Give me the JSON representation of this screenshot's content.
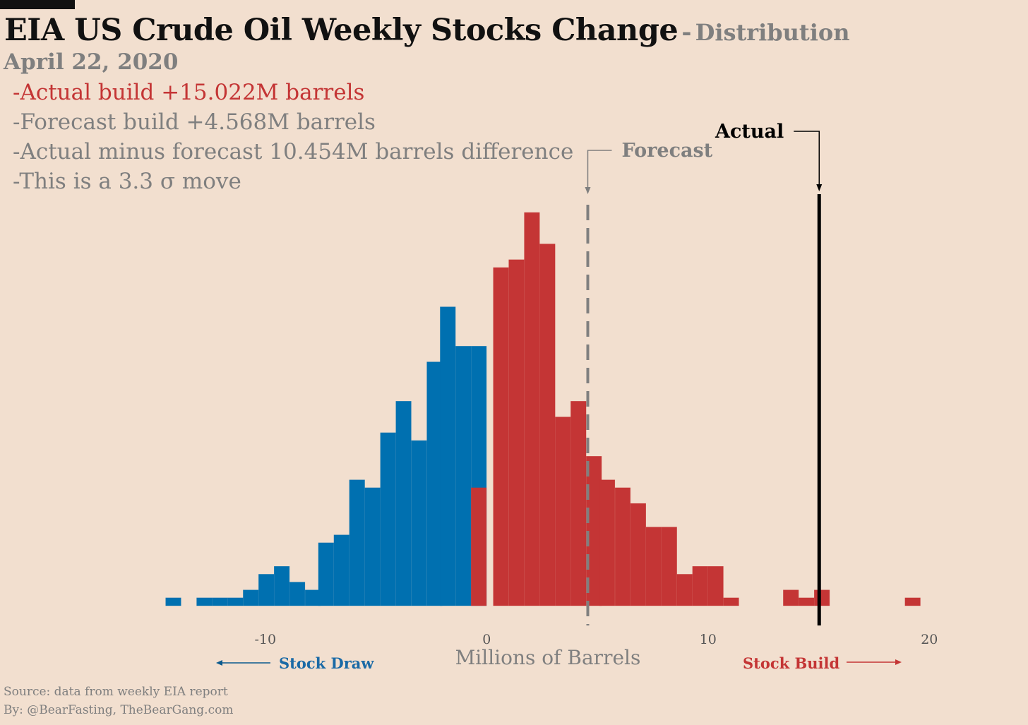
{
  "header": {
    "title": "EIA US Crude Oil Weekly Stocks Change",
    "title_dash": "-",
    "subtitle": "Distribution",
    "date": "April 22, 2020"
  },
  "notes": [
    "-Actual build +15.022M barrels",
    "-Forecast build +4.568M barrels",
    "-Actual minus forecast  10.454M barrels difference",
    "-This is a 3.3 σ move"
  ],
  "footer": {
    "source": "Source: data from  weekly EIA report",
    "by": "By: @BearFasting, TheBearGang.com"
  },
  "colors": {
    "background": "#f2dfcf",
    "draw": "#0070b0",
    "build": "#c43535",
    "forecast_line": "#7f7f7f",
    "actual_line": "#000000"
  },
  "chart_data": {
    "type": "bar",
    "subtype": "histogram",
    "xlabel": "Millions of Barrels",
    "xlim": [
      -15,
      20.5
    ],
    "xticks": [
      -10,
      0,
      10,
      20
    ],
    "bin_width": 0.69,
    "grid": false,
    "series": [
      {
        "name": "Stock Draw",
        "color": "#0070b0",
        "bins": [
          {
            "x0": -14.5,
            "count": 1
          },
          {
            "x0": -13.1,
            "count": 1
          },
          {
            "x0": -12.4,
            "count": 1
          },
          {
            "x0": -11.7,
            "count": 1
          },
          {
            "x0": -11.0,
            "count": 2
          },
          {
            "x0": -10.3,
            "count": 4
          },
          {
            "x0": -9.6,
            "count": 5
          },
          {
            "x0": -8.9,
            "count": 3
          },
          {
            "x0": -8.2,
            "count": 2
          },
          {
            "x0": -7.6,
            "count": 8
          },
          {
            "x0": -6.9,
            "count": 9
          },
          {
            "x0": -6.2,
            "count": 16
          },
          {
            "x0": -5.5,
            "count": 15
          },
          {
            "x0": -4.8,
            "count": 22
          },
          {
            "x0": -4.1,
            "count": 26
          },
          {
            "x0": -3.4,
            "count": 21
          },
          {
            "x0": -2.7,
            "count": 31
          },
          {
            "x0": -2.1,
            "count": 38
          },
          {
            "x0": -1.4,
            "count": 33
          },
          {
            "x0": -0.7,
            "count": 33
          }
        ]
      },
      {
        "name": "Stock Build",
        "color": "#c43535",
        "bins": [
          {
            "x0": -0.7,
            "count": 15
          },
          {
            "x0": 0.3,
            "count": 43
          },
          {
            "x0": 1.0,
            "count": 44
          },
          {
            "x0": 1.7,
            "count": 50
          },
          {
            "x0": 2.4,
            "count": 46
          },
          {
            "x0": 3.1,
            "count": 24
          },
          {
            "x0": 3.8,
            "count": 26
          },
          {
            "x0": 4.5,
            "count": 19
          },
          {
            "x0": 5.1,
            "count": 16
          },
          {
            "x0": 5.8,
            "count": 15
          },
          {
            "x0": 6.5,
            "count": 13
          },
          {
            "x0": 7.2,
            "count": 10
          },
          {
            "x0": 7.9,
            "count": 10
          },
          {
            "x0": 8.6,
            "count": 4
          },
          {
            "x0": 9.3,
            "count": 5
          },
          {
            "x0": 10.0,
            "count": 5
          },
          {
            "x0": 10.7,
            "count": 1
          },
          {
            "x0": 13.4,
            "count": 2
          },
          {
            "x0": 14.1,
            "count": 1
          },
          {
            "x0": 14.8,
            "count": 2
          },
          {
            "x0": 18.9,
            "count": 1
          }
        ]
      }
    ],
    "ylim": [
      0,
      50
    ],
    "forecast": {
      "label": "Forecast",
      "value": 4.568
    },
    "actual": {
      "label": "Actual",
      "value": 15.022
    },
    "annotations": {
      "left": "Stock Draw",
      "right": "Stock Build"
    }
  }
}
